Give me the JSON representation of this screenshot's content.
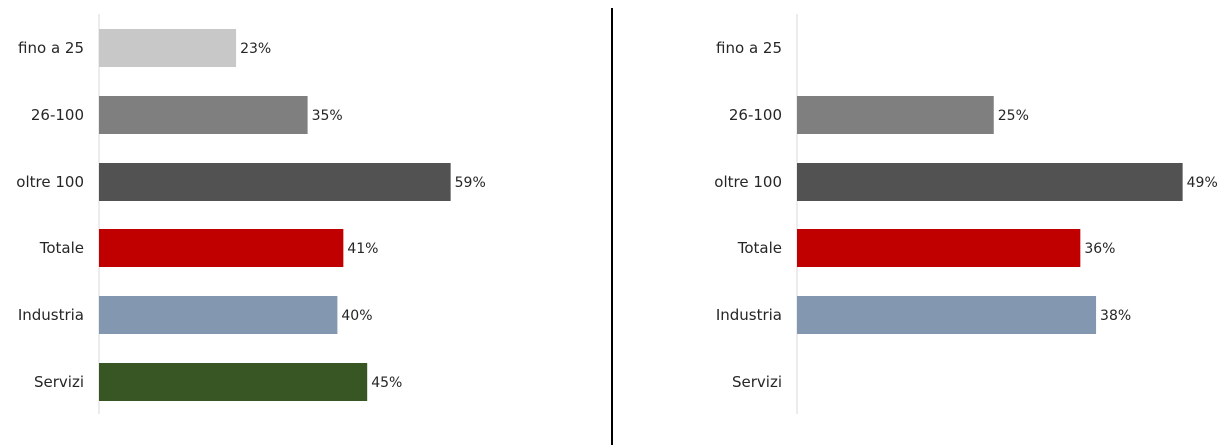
{
  "chart_data": [
    {
      "type": "bar",
      "orientation": "horizontal",
      "categories": [
        "fino a 25",
        "26-100",
        "oltre 100",
        "Totale",
        "Industria",
        "Servizi"
      ],
      "values": [
        23,
        35,
        59,
        41,
        40,
        45
      ],
      "value_labels": [
        "23%",
        "35%",
        "59%",
        "41%",
        "40%",
        "45%"
      ],
      "colors": [
        "#c8c8c8",
        "#7f7f7f",
        "#525252",
        "#c00000",
        "#8497b0",
        "#375623"
      ],
      "xlim": [
        0,
        100
      ],
      "grid": false,
      "legend": false
    },
    {
      "type": "bar",
      "orientation": "horizontal",
      "categories": [
        "fino a 25",
        "26-100",
        "oltre 100",
        "Totale",
        "Industria",
        "Servizi"
      ],
      "values": [
        null,
        25,
        49,
        36,
        38,
        null
      ],
      "value_labels": [
        "",
        "25%",
        "49%",
        "36%",
        "38%",
        ""
      ],
      "colors": [
        "#c8c8c8",
        "#7f7f7f",
        "#525252",
        "#c00000",
        "#8497b0",
        "#375623"
      ],
      "xlim": [
        0,
        100
      ],
      "grid": false,
      "legend": false
    }
  ],
  "divider_color": "#000000"
}
